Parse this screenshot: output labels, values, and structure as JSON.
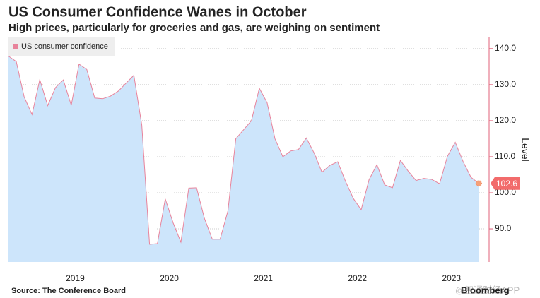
{
  "chart_data": {
    "type": "area",
    "title": "US Consumer Confidence Wanes in October",
    "subtitle": "High prices, particularly for groceries and gas, are weighing on sentiment",
    "y_label": "Level",
    "source": "Source: The Conference Board",
    "brand": "Bloomberg",
    "watermark": "@智通财经APP",
    "x": [
      2018.75,
      2018.833,
      2018.917,
      2019.0,
      2019.083,
      2019.167,
      2019.25,
      2019.333,
      2019.417,
      2019.5,
      2019.583,
      2019.667,
      2019.75,
      2019.833,
      2019.917,
      2020.0,
      2020.083,
      2020.167,
      2020.25,
      2020.333,
      2020.417,
      2020.5,
      2020.583,
      2020.667,
      2020.75,
      2020.833,
      2020.917,
      2021.0,
      2021.083,
      2021.167,
      2021.25,
      2021.333,
      2021.417,
      2021.5,
      2021.583,
      2021.667,
      2021.75,
      2021.833,
      2021.917,
      2022.0,
      2022.083,
      2022.167,
      2022.25,
      2022.333,
      2022.417,
      2022.5,
      2022.583,
      2022.667,
      2022.75,
      2022.833,
      2022.917,
      2023.0,
      2023.083,
      2023.167,
      2023.25,
      2023.333,
      2023.417,
      2023.5,
      2023.583,
      2023.667,
      2023.75
    ],
    "series": [
      {
        "name": "US consumer confidence",
        "color": "#e8839b",
        "fill": "#cde5fb",
        "values": [
          137.9,
          136.4,
          126.6,
          121.7,
          131.4,
          124.2,
          129.2,
          131.3,
          124.3,
          135.7,
          134.2,
          126.3,
          126.1,
          126.8,
          128.2,
          130.4,
          132.6,
          118.8,
          85.7,
          85.9,
          98.3,
          91.7,
          86.3,
          101.3,
          101.4,
          92.9,
          87.1,
          87.1,
          95.0,
          115.0,
          117.5,
          120.0,
          129.0,
          125.0,
          115.0,
          110.0,
          111.6,
          112.0,
          115.2,
          111.0,
          105.7,
          107.6,
          108.6,
          103.2,
          98.4,
          95.3,
          103.6,
          107.8,
          102.2,
          101.4,
          109.0,
          106.0,
          103.4,
          104.0,
          103.7,
          102.5,
          110.1,
          114.0,
          108.7,
          104.3,
          102.6
        ]
      }
    ],
    "last_value_label": "102.6",
    "last_value_color": "#f26b6b",
    "xlim": [
      2018.75,
      2023.86
    ],
    "xticks": [
      {
        "value": 2019.46,
        "label": "2019"
      },
      {
        "value": 2020.46,
        "label": "2020"
      },
      {
        "value": 2021.46,
        "label": "2021"
      },
      {
        "value": 2022.46,
        "label": "2022"
      },
      {
        "value": 2023.46,
        "label": "2023"
      }
    ],
    "ylim": [
      80.8,
      143.1
    ],
    "yticks": [
      {
        "value": 90,
        "label": "90.0"
      },
      {
        "value": 100,
        "label": "100.0"
      },
      {
        "value": 110,
        "label": "110.0"
      },
      {
        "value": 120,
        "label": "120.0"
      },
      {
        "value": 130,
        "label": "130.0"
      },
      {
        "value": 140,
        "label": "140.0"
      }
    ],
    "grid": true,
    "legend": "top-left"
  }
}
